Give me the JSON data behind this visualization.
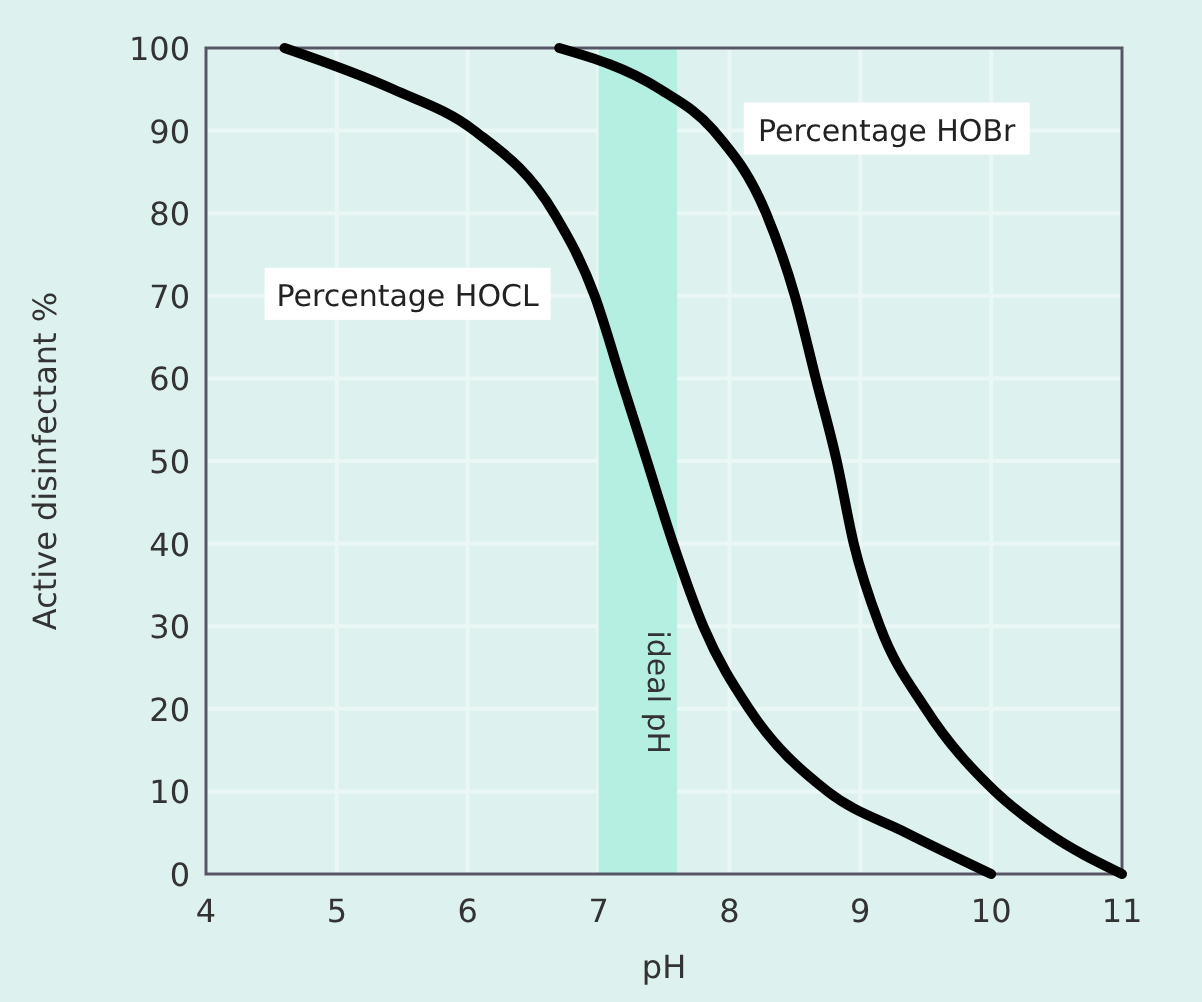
{
  "chart_data": {
    "type": "line",
    "xlabel": "pH",
    "ylabel": "Active disinfectant %",
    "xlim": [
      4,
      11
    ],
    "ylim": [
      0,
      100
    ],
    "xticks": [
      4,
      5,
      6,
      7,
      8,
      9,
      10,
      11
    ],
    "yticks": [
      0,
      10,
      20,
      30,
      40,
      50,
      60,
      70,
      80,
      90,
      100
    ],
    "grid": true,
    "marker": "none",
    "line_style": "solid",
    "bands": [
      {
        "axis": "x",
        "from": 7,
        "to": 7.6,
        "label": "ideal pH",
        "color": "#b5efe2"
      }
    ],
    "series": [
      {
        "name": "Percentage HOCL",
        "color": "#000000",
        "x": [
          4.6,
          5.43,
          6.05,
          6.66,
          6.97,
          7.17,
          7.37,
          7.57,
          7.8,
          8.15,
          8.75,
          9.35,
          10
        ],
        "values": [
          100,
          95,
          90,
          80,
          70,
          60,
          50,
          40,
          30,
          20,
          10,
          5,
          0
        ]
      },
      {
        "name": "Percentage HOBr",
        "color": "#000000",
        "x": [
          6.7,
          7.47,
          7.88,
          8.28,
          8.5,
          8.66,
          8.82,
          8.95,
          9.15,
          9.5,
          10.03,
          10.43,
          11
        ],
        "values": [
          100,
          95,
          90,
          80,
          70,
          60,
          50,
          40,
          30,
          20,
          10,
          5,
          0
        ]
      }
    ]
  }
}
